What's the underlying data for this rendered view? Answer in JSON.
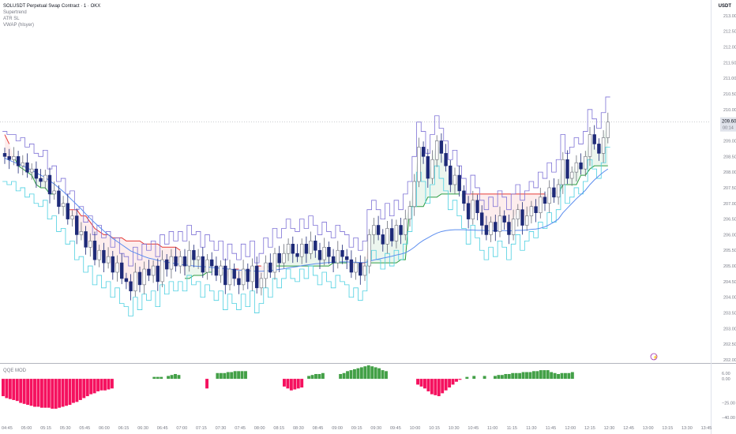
{
  "header": {
    "title": "SOLUSDT Perpetual Swap Contract · 1 · OKX",
    "indicators": [
      "Supertrend",
      "ATR SL",
      "VWAP (hlsyer)"
    ]
  },
  "currency": "USDT",
  "oscillator": {
    "name": "QQE MOD"
  },
  "price_label": {
    "price": "209.60",
    "countdown": "00:14"
  },
  "colors": {
    "bull": "#ffffff",
    "bear": "#1e2a78",
    "supertrend_down": "#e53935",
    "supertrend_up": "#2e9e44",
    "atr_upper": "#7e72d6",
    "atr_lower": "#4dd0e1",
    "vwap": "#5b8def",
    "hist_bull": "#43a047",
    "hist_bear": "#f5115f"
  },
  "chart_data": [
    {
      "type": "candlestick",
      "x_ticks": [
        "04:45",
        "05:00",
        "05:15",
        "05:30",
        "05:45",
        "06:00",
        "06:15",
        "06:30",
        "06:45",
        "07:00",
        "07:15",
        "07:30",
        "07:45",
        "08:00",
        "08:15",
        "08:30",
        "08:45",
        "09:00",
        "09:15",
        "09:30",
        "09:45",
        "10:00",
        "10:15",
        "10:30",
        "10:45",
        "11:00",
        "11:15",
        "11:30",
        "11:45",
        "12:00",
        "12:15",
        "12:30",
        "12:45",
        "13:00",
        "13:15",
        "13:30",
        "13:45"
      ],
      "y_ticks": [
        "213.00",
        "212.50",
        "212.00",
        "211.50",
        "211.00",
        "210.50",
        "210.00",
        "209.50",
        "209.00",
        "208.50",
        "208.00",
        "207.50",
        "207.00",
        "206.50",
        "206.00",
        "205.50",
        "205.00",
        "204.50",
        "204.00",
        "203.50",
        "203.00",
        "202.50",
        "202.00"
      ],
      "ylim": [
        201.95,
        213.4
      ],
      "series": {
        "close": [
          208.5,
          208.4,
          208.5,
          208.2,
          208.3,
          208.0,
          208.1,
          207.8,
          207.7,
          207.9,
          207.3,
          207.4,
          206.9,
          207.0,
          206.5,
          206.6,
          206.0,
          206.1,
          205.6,
          205.8,
          205.2,
          205.5,
          205.1,
          205.3,
          204.8,
          205.1,
          204.6,
          204.5,
          204.2,
          204.8,
          204.4,
          204.9,
          204.7,
          205.0,
          204.5,
          205.2,
          204.9,
          205.3,
          205.0,
          205.3,
          205.0,
          205.5,
          205.2,
          205.3,
          204.8,
          205.2,
          205.0,
          204.7,
          205.0,
          204.4,
          204.9,
          204.6,
          204.4,
          204.9,
          204.5,
          205.0,
          204.3,
          204.6,
          205.1,
          204.8,
          205.4,
          205.1,
          205.4,
          205.7,
          205.4,
          205.3,
          205.7,
          205.4,
          205.8,
          205.5,
          205.2,
          205.6,
          205.3,
          205.1,
          205.5,
          205.3,
          205.2,
          204.8,
          205.1,
          204.7,
          205.0,
          206.0,
          206.3,
          206.0,
          205.7,
          206.2,
          205.8,
          206.3,
          206.0,
          206.5,
          206.9,
          207.7,
          208.8,
          208.5,
          207.8,
          208.4,
          209.0,
          208.6,
          208.2,
          207.6,
          207.9,
          207.4,
          207.0,
          206.5,
          207.1,
          206.7,
          206.3,
          206.0,
          206.4,
          206.1,
          206.6,
          206.4,
          206.0,
          206.5,
          206.8,
          206.3,
          206.6,
          206.9,
          206.7,
          207.2,
          207.0,
          207.5,
          207.2,
          207.6,
          208.4,
          207.8,
          208.0,
          208.3,
          208.1,
          208.5,
          209.2,
          208.9,
          208.6,
          209.1,
          209.6
        ],
        "supertrend": [
          209.2,
          208.9,
          208.5,
          208.2,
          208.1,
          208.0,
          207.9,
          207.6,
          207.5,
          207.5,
          207.3,
          207.3,
          207.0,
          207.0,
          206.8,
          206.8,
          206.8,
          206.6,
          206.6,
          206.4,
          206.2,
          206.1,
          206.0,
          206.0,
          205.9,
          205.9,
          205.9,
          205.8,
          205.8,
          205.8,
          205.8,
          205.7,
          205.7,
          205.7,
          205.7,
          205.6,
          205.6,
          205.6,
          205.6,
          205.5,
          204.6,
          204.6,
          204.7,
          204.7,
          204.7,
          204.8,
          204.8,
          204.8,
          204.8,
          204.8,
          204.9,
          204.9,
          204.9,
          204.9,
          204.9,
          205.0,
          205.0,
          205.0,
          205.0,
          205.0,
          205.0,
          205.0,
          205.0,
          205.0,
          205.0,
          205.0,
          205.0,
          205.0,
          205.0,
          205.0,
          205.0,
          205.0,
          205.0,
          205.1,
          205.1,
          205.1,
          205.1,
          205.1,
          205.1,
          205.1,
          205.1,
          205.1,
          205.1,
          205.1,
          205.1,
          205.1,
          205.1,
          205.1,
          205.2,
          205.2,
          206.9,
          206.9,
          206.9,
          206.9,
          207.2,
          207.2,
          207.2,
          207.3,
          207.3,
          207.3,
          207.3,
          207.3,
          207.3,
          207.3,
          207.3,
          207.3,
          207.3,
          207.3,
          207.3,
          207.3,
          207.3,
          207.3,
          207.3,
          207.3,
          207.3,
          207.3,
          207.3,
          207.3,
          207.3,
          207.3,
          207.3,
          207.3,
          207.3,
          207.3,
          207.6,
          207.6,
          207.6,
          207.6,
          207.9,
          207.9,
          208.1,
          208.2,
          208.2,
          208.2,
          208.2
        ],
        "vwap": [
          208.45,
          208.38,
          208.32,
          208.26,
          208.2,
          208.13,
          208.06,
          207.98,
          207.9,
          207.83,
          207.72,
          207.62,
          207.5,
          207.38,
          207.24,
          207.1,
          206.96,
          206.82,
          206.66,
          206.52,
          206.38,
          206.25,
          206.12,
          206.0,
          205.88,
          205.78,
          205.68,
          205.58,
          205.48,
          205.42,
          205.36,
          205.3,
          205.25,
          205.22,
          205.18,
          205.15,
          205.12,
          205.1,
          205.07,
          205.05,
          205.03,
          205.02,
          205.0,
          204.99,
          204.98,
          204.97,
          204.95,
          204.94,
          204.93,
          204.91,
          204.9,
          204.88,
          204.87,
          204.86,
          204.85,
          204.84,
          204.83,
          204.83,
          204.84,
          204.85,
          204.87,
          204.89,
          204.91,
          204.94,
          204.96,
          204.98,
          205.01,
          205.03,
          205.05,
          205.07,
          205.08,
          205.1,
          205.11,
          205.12,
          205.13,
          205.13,
          205.13,
          205.12,
          205.12,
          205.11,
          205.11,
          205.15,
          205.19,
          205.22,
          205.25,
          205.28,
          205.31,
          205.35,
          205.38,
          205.42,
          205.5,
          205.6,
          205.72,
          205.82,
          205.9,
          205.98,
          206.05,
          206.1,
          206.13,
          206.15,
          206.16,
          206.16,
          206.16,
          206.15,
          206.15,
          206.14,
          206.14,
          206.13,
          206.13,
          206.12,
          206.13,
          206.13,
          206.12,
          206.13,
          206.14,
          206.14,
          206.15,
          206.17,
          206.18,
          206.21,
          206.25,
          206.32,
          206.4,
          206.5,
          206.7,
          206.85,
          207.0,
          207.15,
          207.28,
          207.42,
          207.6,
          207.75,
          207.88,
          208.0,
          208.1
        ],
        "atr_upper": [
          209.3,
          209.2,
          209.2,
          209.0,
          209.1,
          208.8,
          208.9,
          208.6,
          208.5,
          208.7,
          208.1,
          208.2,
          207.7,
          207.8,
          207.3,
          207.4,
          206.8,
          206.9,
          206.4,
          206.6,
          206.0,
          206.3,
          205.9,
          206.1,
          205.6,
          205.9,
          205.4,
          205.3,
          205.0,
          205.6,
          205.2,
          205.7,
          205.5,
          205.8,
          205.3,
          206.0,
          205.7,
          206.1,
          205.8,
          206.1,
          205.8,
          206.3,
          206.0,
          206.1,
          205.6,
          206.0,
          205.8,
          205.5,
          205.8,
          205.2,
          205.7,
          205.4,
          205.2,
          205.7,
          205.3,
          205.8,
          205.1,
          205.4,
          205.9,
          205.6,
          206.2,
          205.9,
          206.2,
          206.5,
          206.2,
          206.1,
          206.5,
          206.2,
          206.6,
          206.3,
          206.0,
          206.4,
          206.1,
          205.9,
          206.3,
          206.1,
          206.0,
          205.6,
          205.9,
          205.5,
          205.8,
          206.8,
          207.1,
          206.8,
          206.5,
          207.0,
          206.6,
          207.1,
          206.8,
          207.3,
          207.7,
          208.5,
          209.6,
          209.3,
          208.6,
          209.2,
          209.8,
          209.4,
          209.0,
          208.4,
          208.7,
          208.2,
          207.8,
          207.3,
          207.9,
          207.5,
          207.1,
          206.8,
          207.2,
          206.9,
          207.4,
          207.2,
          206.8,
          207.3,
          207.6,
          207.1,
          207.4,
          207.7,
          207.5,
          208.0,
          207.8,
          208.3,
          208.0,
          208.4,
          209.2,
          208.6,
          208.8,
          209.1,
          208.9,
          209.3,
          210.0,
          209.7,
          209.4,
          209.9,
          210.4
        ],
        "atr_lower": [
          207.7,
          207.6,
          207.7,
          207.4,
          207.5,
          207.2,
          207.3,
          207.0,
          206.9,
          207.1,
          206.5,
          206.6,
          206.1,
          206.2,
          205.7,
          205.8,
          205.2,
          205.3,
          204.8,
          205.0,
          204.4,
          204.7,
          204.3,
          204.5,
          204.0,
          204.3,
          203.8,
          203.7,
          203.4,
          204.0,
          203.6,
          204.1,
          203.9,
          204.2,
          203.7,
          204.4,
          204.1,
          204.5,
          204.2,
          204.5,
          204.2,
          204.7,
          204.4,
          204.5,
          204.0,
          204.4,
          204.2,
          203.9,
          204.2,
          203.6,
          204.1,
          203.8,
          203.6,
          204.1,
          203.7,
          204.2,
          203.5,
          203.8,
          204.3,
          204.0,
          204.6,
          204.3,
          204.6,
          204.9,
          204.6,
          204.5,
          204.9,
          204.6,
          205.0,
          204.7,
          204.4,
          204.8,
          204.5,
          204.3,
          204.7,
          204.5,
          204.4,
          204.0,
          204.3,
          203.9,
          204.2,
          205.2,
          205.5,
          205.2,
          204.9,
          205.4,
          205.0,
          205.5,
          205.2,
          205.7,
          206.1,
          206.9,
          208.0,
          207.7,
          207.0,
          207.6,
          208.2,
          207.8,
          207.4,
          206.8,
          207.1,
          206.6,
          206.2,
          205.7,
          206.3,
          205.9,
          205.5,
          205.2,
          205.6,
          205.3,
          205.8,
          205.6,
          205.2,
          205.7,
          206.0,
          205.5,
          205.8,
          206.1,
          205.9,
          206.4,
          206.2,
          206.7,
          206.4,
          206.8,
          207.6,
          207.0,
          207.2,
          207.5,
          207.3,
          207.7,
          208.4,
          208.1,
          207.8,
          208.3,
          208.8
        ]
      }
    },
    {
      "type": "bar",
      "title": "QQE MOD",
      "y_ticks": [
        "6.00",
        "0.00",
        "−25.00",
        "−40.00"
      ],
      "ylim": [
        -45,
        14
      ],
      "values": [
        -18,
        -20,
        -21,
        -22,
        -23,
        -25,
        -26,
        -27,
        -28,
        -29,
        -29,
        -30,
        -30,
        -30,
        -31,
        -31,
        -30,
        -29,
        -28,
        -27,
        -25,
        -24,
        -22,
        -20,
        -18,
        -16,
        -15,
        -13,
        -12,
        -12,
        -11,
        -10,
        0,
        0,
        0,
        0,
        0,
        0,
        0,
        0,
        0,
        0,
        0,
        2,
        2,
        2,
        0,
        3,
        4,
        5,
        4,
        0,
        0,
        0,
        0,
        0,
        0,
        0,
        -10,
        0,
        0,
        6,
        6,
        6,
        7,
        7,
        8,
        8,
        8,
        8,
        0,
        0,
        0,
        0,
        0,
        0,
        0,
        0,
        0,
        0,
        -8,
        -10,
        -12,
        -11,
        -10,
        -9,
        0,
        3,
        4,
        5,
        5,
        6,
        0,
        0,
        0,
        0,
        5,
        6,
        8,
        9,
        10,
        11,
        12,
        13,
        14,
        13,
        12,
        11,
        9,
        8,
        0,
        0,
        0,
        0,
        0,
        0,
        0,
        0,
        -6,
        -8,
        -10,
        -13,
        -16,
        -17,
        -18,
        -15,
        -12,
        -9,
        -6,
        -3,
        -1,
        0,
        2,
        0,
        3,
        0,
        0,
        3,
        0,
        0,
        3,
        4,
        4,
        5,
        5,
        6,
        6,
        6,
        7,
        7,
        7,
        8,
        8,
        9,
        9,
        9,
        7,
        6,
        5,
        6,
        6,
        6,
        7
      ]
    }
  ]
}
